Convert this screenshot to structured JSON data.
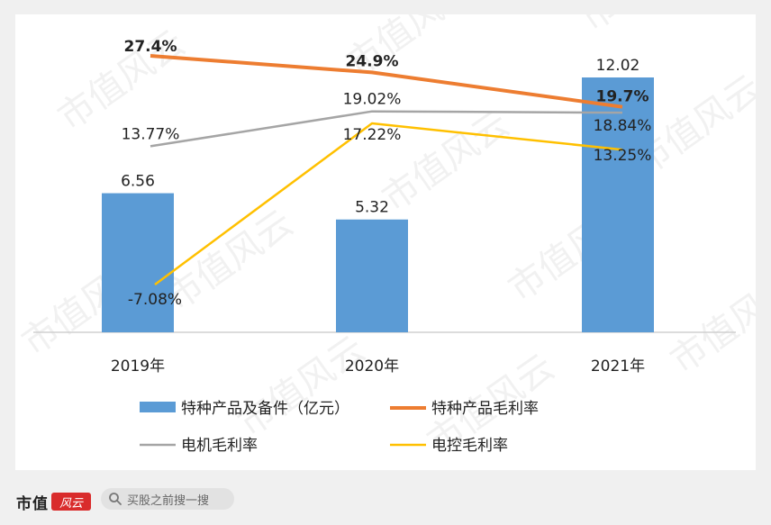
{
  "chart_data": {
    "type": "bar+line",
    "categories": [
      "2019年",
      "2020年",
      "2021年"
    ],
    "bar_series": {
      "name": "特种产品及备件（亿元）",
      "values": [
        6.56,
        5.32,
        12.02
      ],
      "value_labels": [
        "6.56",
        "5.32",
        "12.02"
      ],
      "color": "#5b9bd5"
    },
    "line_series": [
      {
        "name": "特种产品毛利率",
        "values": [
          27.4,
          24.9,
          19.7
        ],
        "value_labels": [
          "27.4%",
          "24.9%",
          "19.7%"
        ],
        "color": "#ed7d31",
        "bold_labels": true
      },
      {
        "name": "电机毛利率",
        "values": [
          13.77,
          19.02,
          18.84
        ],
        "value_labels": [
          "13.77%",
          "19.02%",
          "18.84%"
        ],
        "color": "#a5a5a5",
        "bold_labels": false
      },
      {
        "name": "电控毛利率",
        "values": [
          -7.08,
          17.22,
          13.25
        ],
        "value_labels": [
          "-7.08%",
          "17.22%",
          "13.25%"
        ],
        "color": "#ffc000",
        "bold_labels": false
      }
    ],
    "legend_position": "bottom",
    "grid": false
  },
  "watermark": "市值风云",
  "footer": {
    "brand": "市值",
    "brand_seal": "风云",
    "search_placeholder": "买股之前搜一搜"
  }
}
